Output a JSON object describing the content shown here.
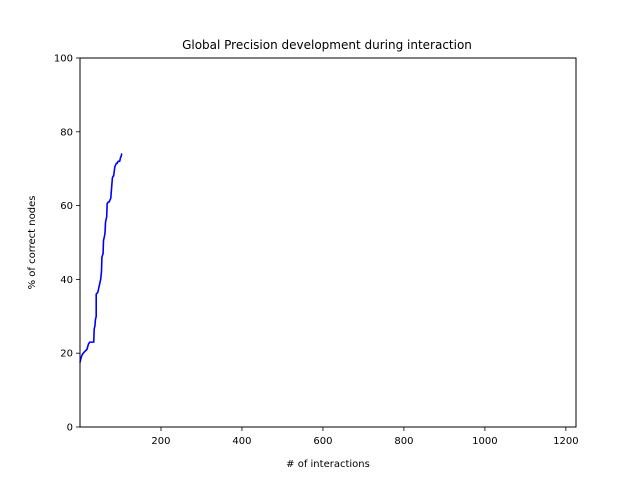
{
  "chart_data": {
    "type": "line",
    "title": "Global Precision development during interaction",
    "xlabel": "# of interactions",
    "ylabel": "% of correct nodes",
    "xlim": [
      0,
      1225
    ],
    "ylim": [
      0,
      100
    ],
    "xticks": [
      200,
      400,
      600,
      800,
      1000,
      1200
    ],
    "yticks": [
      0,
      20,
      40,
      60,
      80,
      100
    ],
    "grid": false,
    "series": [
      {
        "color": "#0000ff",
        "x": [
          0,
          2,
          5,
          8,
          12,
          17,
          21,
          24,
          29,
          34,
          35,
          36,
          37,
          38,
          39,
          40,
          40,
          44,
          45,
          46,
          48,
          49,
          50,
          51,
          52,
          53,
          54,
          54,
          57,
          58,
          59,
          60,
          61,
          62,
          63,
          64,
          65,
          66,
          67,
          70,
          72,
          74,
          76,
          80,
          82,
          83,
          86,
          88,
          90,
          92,
          94,
          98,
          100,
          102,
          103,
          104
        ],
        "y": [
          17.5,
          18.5,
          19.5,
          20.0,
          20.5,
          21.0,
          22.5,
          23.0,
          23.0,
          23.0,
          26.5,
          27.0,
          27.5,
          29.0,
          29.5,
          30.0,
          36.0,
          36.5,
          37.0,
          37.5,
          38.5,
          39.0,
          39.5,
          40.0,
          41.0,
          42.0,
          45.5,
          46.0,
          47.0,
          50.5,
          51.0,
          51.5,
          52.0,
          53.0,
          55.5,
          56.0,
          56.5,
          57.0,
          60.5,
          61.0,
          61.0,
          61.5,
          62.0,
          67.5,
          68.0,
          68.0,
          70.5,
          71.0,
          71.5,
          71.5,
          72.0,
          72.0,
          73.0,
          73.5,
          74.0,
          74.0
        ]
      }
    ]
  }
}
